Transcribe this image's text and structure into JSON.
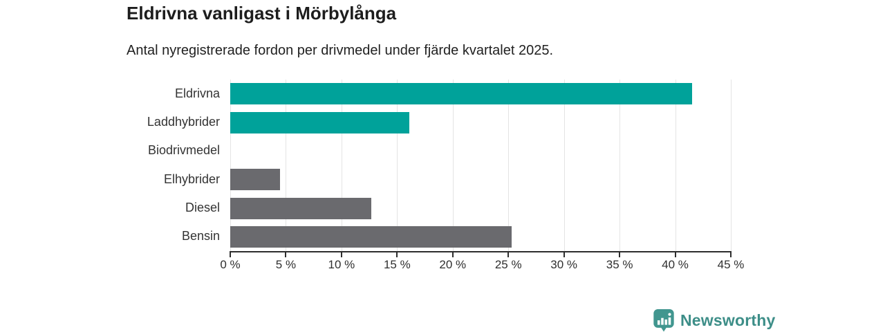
{
  "header": {
    "title": "Eldrivna vanligast i Mörbylånga",
    "subtitle": "Antal nyregistrerade fordon per drivmedel under fjärde kvartalet 2025."
  },
  "chart_data": {
    "type": "bar",
    "orientation": "horizontal",
    "title": "Eldrivna vanligast i Mörbylånga",
    "subtitle": "Antal nyregistrerade fordon per drivmedel under fjärde kvartalet 2025.",
    "categories": [
      "Eldrivna",
      "Laddhybrider",
      "Biodrivmedel",
      "Elhybrider",
      "Diesel",
      "Bensin"
    ],
    "values": [
      41.5,
      16.1,
      0,
      4.5,
      12.7,
      25.3
    ],
    "unit": "%",
    "bar_colors": [
      "#00a29a",
      "#00a29a",
      "#6a6a6e",
      "#6a6a6e",
      "#6a6a6e",
      "#6a6a6e"
    ],
    "highlight_color": "#00a29a",
    "default_color": "#6a6a6e",
    "x_tick_labels": [
      "0 %",
      "5 %",
      "10 %",
      "15 %",
      "20 %",
      "25 %",
      "30 %",
      "35 %",
      "40 %",
      "45 %"
    ],
    "x_tick_values": [
      0,
      5,
      10,
      15,
      20,
      25,
      30,
      35,
      40,
      45
    ],
    "xlim": [
      0,
      45
    ],
    "grid": true,
    "gridline_color": "#e4e4e4",
    "axis_color": "#2d2d2d",
    "legend": "none"
  },
  "footer": {
    "brand": "Newsworthy",
    "brand_icon": "newsworthy-chart-pin-icon",
    "brand_text_color": "#3d8e88",
    "brand_icon_color": "#41968f"
  }
}
